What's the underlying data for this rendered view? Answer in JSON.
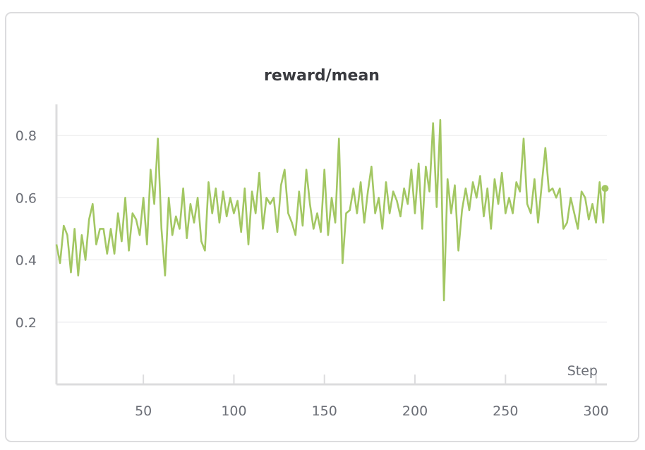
{
  "chart_data": {
    "type": "line",
    "title": "reward/mean",
    "x_label": "Step",
    "x": [
      2,
      4,
      6,
      8,
      10,
      12,
      14,
      16,
      18,
      20,
      22,
      24,
      26,
      28,
      30,
      32,
      34,
      36,
      38,
      40,
      42,
      44,
      46,
      48,
      50,
      52,
      54,
      56,
      58,
      60,
      62,
      64,
      66,
      68,
      70,
      72,
      74,
      76,
      78,
      80,
      82,
      84,
      86,
      88,
      90,
      92,
      94,
      96,
      98,
      100,
      102,
      104,
      106,
      108,
      110,
      112,
      114,
      116,
      118,
      120,
      122,
      124,
      126,
      128,
      130,
      132,
      134,
      136,
      138,
      140,
      142,
      144,
      146,
      148,
      150,
      152,
      154,
      156,
      158,
      160,
      162,
      164,
      166,
      168,
      170,
      172,
      174,
      176,
      178,
      180,
      182,
      184,
      186,
      188,
      190,
      192,
      194,
      196,
      198,
      200,
      202,
      204,
      206,
      208,
      210,
      212,
      214,
      216,
      218,
      220,
      222,
      224,
      226,
      228,
      230,
      232,
      234,
      236,
      238,
      240,
      242,
      244,
      246,
      248,
      250,
      252,
      254,
      256,
      258,
      260,
      262,
      264,
      266,
      268,
      270,
      272,
      274,
      276,
      278,
      280,
      282,
      284,
      286,
      288,
      290,
      292,
      294,
      296,
      298,
      300,
      302,
      304,
      305
    ],
    "series": [
      {
        "name": "reward/mean",
        "color": "#a3c763",
        "values": [
          0.45,
          0.39,
          0.51,
          0.48,
          0.36,
          0.5,
          0.35,
          0.48,
          0.4,
          0.53,
          0.58,
          0.45,
          0.5,
          0.5,
          0.42,
          0.5,
          0.42,
          0.55,
          0.46,
          0.6,
          0.43,
          0.55,
          0.53,
          0.48,
          0.6,
          0.45,
          0.69,
          0.58,
          0.79,
          0.5,
          0.35,
          0.6,
          0.48,
          0.54,
          0.5,
          0.63,
          0.47,
          0.58,
          0.52,
          0.6,
          0.46,
          0.43,
          0.65,
          0.55,
          0.63,
          0.52,
          0.62,
          0.54,
          0.6,
          0.55,
          0.59,
          0.49,
          0.63,
          0.45,
          0.62,
          0.55,
          0.68,
          0.5,
          0.6,
          0.58,
          0.6,
          0.49,
          0.64,
          0.69,
          0.55,
          0.52,
          0.48,
          0.62,
          0.51,
          0.69,
          0.58,
          0.5,
          0.55,
          0.49,
          0.69,
          0.48,
          0.6,
          0.52,
          0.79,
          0.39,
          0.55,
          0.56,
          0.63,
          0.55,
          0.65,
          0.52,
          0.62,
          0.7,
          0.55,
          0.6,
          0.5,
          0.65,
          0.55,
          0.62,
          0.59,
          0.54,
          0.63,
          0.58,
          0.69,
          0.55,
          0.71,
          0.5,
          0.7,
          0.62,
          0.84,
          0.57,
          0.85,
          0.27,
          0.66,
          0.55,
          0.64,
          0.43,
          0.56,
          0.63,
          0.56,
          0.65,
          0.6,
          0.67,
          0.54,
          0.63,
          0.5,
          0.66,
          0.58,
          0.68,
          0.55,
          0.6,
          0.55,
          0.65,
          0.62,
          0.79,
          0.58,
          0.55,
          0.66,
          0.52,
          0.64,
          0.76,
          0.62,
          0.63,
          0.6,
          0.63,
          0.5,
          0.52,
          0.6,
          0.55,
          0.5,
          0.62,
          0.6,
          0.53,
          0.58,
          0.52,
          0.65,
          0.52,
          0.63
        ]
      }
    ],
    "xlim": [
      2,
      306
    ],
    "ylim": [
      0,
      0.9
    ],
    "xticks": [
      50,
      100,
      150,
      200,
      250,
      300
    ],
    "yticks": [
      0.2,
      0.4,
      0.6,
      0.8
    ],
    "grid": true
  }
}
